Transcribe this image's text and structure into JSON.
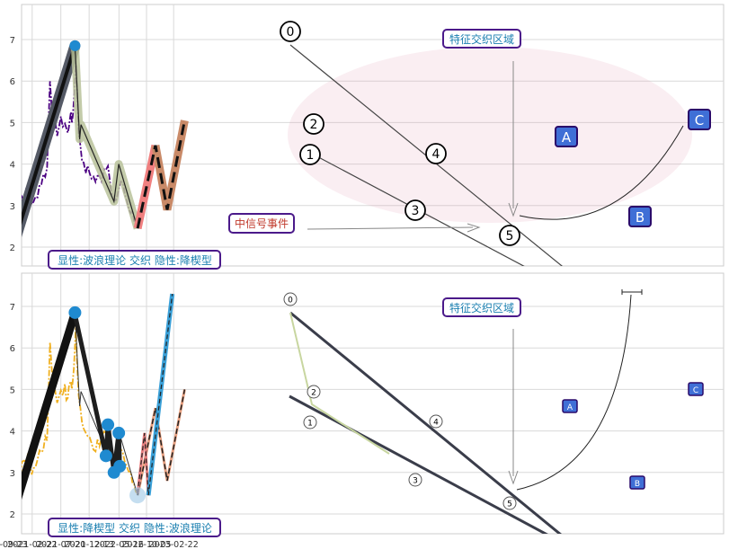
{
  "chart_data": [
    {
      "type": "line",
      "title": "",
      "xlabel": "",
      "ylabel": "",
      "ylim": [
        1.5,
        7.8
      ],
      "yticks": [
        2,
        3,
        4,
        5,
        6,
        7
      ],
      "grid": true,
      "price_series": {
        "color": "#4b0082",
        "x": [
          "2020-11-15",
          "2020-12-05",
          "2021-01-01",
          "2021-02-01",
          "2021-03-01",
          "2021-04-01",
          "2021-05-10",
          "2021-05-25",
          "2021-06-10",
          "2021-07-01",
          "2021-07-20",
          "2021-08-10",
          "2021-08-25",
          "2021-09-05",
          "2021-09-15",
          "2021-09-25",
          "2021-10-05",
          "2021-10-20",
          "2021-11-15",
          "2021-12-15",
          "2022-01-15",
          "2022-02-15",
          "2022-03-01",
          "2022-03-20",
          "2022-04-05",
          "2022-04-20",
          "2022-05-05",
          "2022-05-25",
          "2022-06-15",
          "2022-07-05",
          "2022-07-25",
          "2022-08-10",
          "2022-08-20"
        ],
        "values": [
          2.1,
          2.5,
          3.2,
          3.3,
          3.0,
          3.5,
          3.9,
          6.1,
          5.0,
          4.8,
          5.0,
          5.0,
          4.7,
          5.2,
          5.0,
          5.5,
          6.5,
          4.8,
          3.9,
          3.8,
          3.6,
          3.7,
          3.9,
          4.1,
          3.3,
          3.1,
          3.2,
          3.6,
          3.3,
          3.0,
          2.8,
          2.7,
          2.5
        ]
      },
      "wave_points": [
        {
          "label": "0",
          "x": "2021-10-01",
          "y": 6.85
        },
        {
          "label": "1",
          "x": "2021-10-25",
          "y": 4.6
        },
        {
          "label": "2",
          "x": "2021-11-01",
          "y": 4.95
        },
        {
          "label": "3",
          "x": "2022-04-20",
          "y": 3.1
        },
        {
          "label": "4",
          "x": "2022-05-15",
          "y": 4.0
        },
        {
          "label": "5",
          "x": "2022-08-20",
          "y": 2.45
        }
      ],
      "forecast_points": [
        {
          "label": "A",
          "x": "2022-11-20",
          "y": 4.45
        },
        {
          "label": "B",
          "x": "2023-01-20",
          "y": 2.9
        },
        {
          "label": "C",
          "x": "2023-04-20",
          "y": 5.05
        }
      ],
      "start_point": {
        "x": "2020-11-15",
        "y": 2.0
      },
      "annotations": {
        "feature_zone": "特征交织区域",
        "mid_signal": "中信号事件",
        "caption": "显性:波浪理论 交织 隐性:降楔型"
      }
    },
    {
      "type": "line",
      "title": "",
      "xlabel": "",
      "ylabel": "",
      "ylim": [
        1.5,
        7.8
      ],
      "yticks": [
        2,
        3,
        4,
        5,
        6,
        7
      ],
      "grid": true,
      "xticks": [
        "2020-09-23",
        "2021-02-22",
        "2021-07-20",
        "2021-12-13",
        "2022-05-16",
        "2022-10-05",
        "2023-02-22"
      ],
      "price_series": {
        "color": "#f0b020",
        "x": [
          "2020-11-15",
          "2020-12-05",
          "2021-01-01",
          "2021-02-01",
          "2021-03-01",
          "2021-04-01",
          "2021-05-10",
          "2021-05-25",
          "2021-06-10",
          "2021-07-01",
          "2021-07-20",
          "2021-08-10",
          "2021-08-25",
          "2021-09-05",
          "2021-09-15",
          "2021-09-25",
          "2021-10-05",
          "2021-10-20",
          "2021-11-15",
          "2021-12-15",
          "2022-01-15",
          "2022-02-15",
          "2022-03-01",
          "2022-03-20",
          "2022-04-05",
          "2022-04-20",
          "2022-05-05",
          "2022-05-25",
          "2022-06-15",
          "2022-07-05",
          "2022-07-25",
          "2022-08-10",
          "2022-08-20"
        ],
        "values": [
          2.1,
          2.5,
          3.2,
          3.3,
          3.0,
          3.5,
          3.9,
          6.1,
          5.0,
          4.8,
          5.0,
          5.0,
          4.7,
          5.2,
          5.0,
          5.5,
          6.5,
          4.8,
          3.9,
          3.8,
          3.6,
          3.7,
          3.9,
          4.1,
          3.3,
          3.1,
          3.2,
          3.6,
          3.3,
          3.0,
          2.8,
          2.7,
          2.5
        ]
      },
      "wave_points": [
        {
          "label": "0",
          "x": "2021-10-01",
          "y": 6.85
        },
        {
          "label": "1",
          "x": "2021-10-25",
          "y": 4.6
        },
        {
          "label": "2",
          "x": "2021-11-01",
          "y": 4.95
        },
        {
          "label": "3",
          "x": "2022-04-20",
          "y": 3.1
        },
        {
          "label": "4",
          "x": "2022-05-15",
          "y": 4.0
        },
        {
          "label": "5",
          "x": "2022-08-20",
          "y": 2.45
        }
      ],
      "wedge_points": [
        {
          "x": "2021-10-01",
          "y": 6.8
        },
        {
          "x": "2022-03-10",
          "y": 3.4
        },
        {
          "x": "2022-03-20",
          "y": 4.15
        },
        {
          "x": "2022-04-20",
          "y": 3.0
        },
        {
          "x": "2022-05-15",
          "y": 3.95
        },
        {
          "x": "2022-05-20",
          "y": 3.15
        }
      ],
      "forecast_points": [
        {
          "label": "A",
          "x": "2022-11-20",
          "y": 4.55
        },
        {
          "label": "B",
          "x": "2023-01-20",
          "y": 2.8
        },
        {
          "label": "C",
          "x": "2023-04-20",
          "y": 5.0
        }
      ],
      "wedge_forecast": [
        {
          "x": "2022-08-20",
          "y": 2.5
        },
        {
          "x": "2022-09-25",
          "y": 3.95
        },
        {
          "x": "2022-10-15",
          "y": 2.45
        },
        {
          "x": "2023-02-15",
          "y": 7.3
        }
      ],
      "start_point": {
        "x": "2020-11-15",
        "y": 2.0
      },
      "annotations": {
        "feature_zone": "特征交织区域",
        "caption": "显性:降楔型 交织 隐性:波浪理论"
      }
    }
  ]
}
